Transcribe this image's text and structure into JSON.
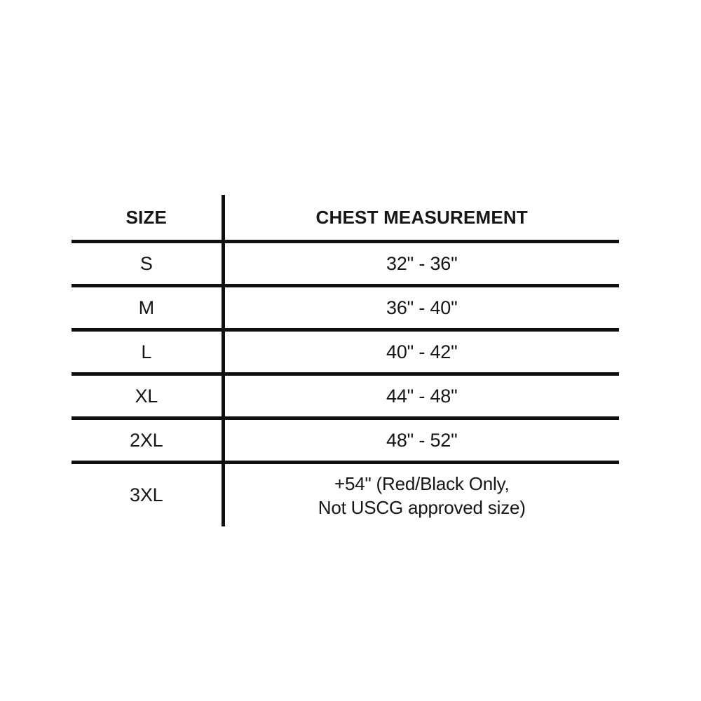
{
  "colors": {
    "background": "#ffffff",
    "text": "#161616",
    "rule_lines": "#101010"
  },
  "chart_data": {
    "type": "table",
    "title": "",
    "columns": [
      "SIZE",
      "CHEST MEASUREMENT"
    ],
    "rows": [
      [
        "S",
        "32\" - 36\""
      ],
      [
        "M",
        "36\" - 40\""
      ],
      [
        "L",
        "40\" - 42\""
      ],
      [
        "XL",
        "44\" - 48\""
      ],
      [
        "2XL",
        "48\" - 52\""
      ],
      [
        "3XL",
        "+54\" (Red/Black Only, Not USCG approved size)"
      ]
    ],
    "layout_hints": {
      "grid": "horizontal rules between rows, single vertical divider between columns, no outer border",
      "header_bold": true,
      "last_row_note_two_lines": true
    }
  },
  "table": {
    "header": {
      "size": "SIZE",
      "chest": "CHEST MEASUREMENT"
    },
    "rows": [
      {
        "size": "S",
        "chest": "32\" - 36\""
      },
      {
        "size": "M",
        "chest": "36\" - 40\""
      },
      {
        "size": "L",
        "chest": "40\" - 42\""
      },
      {
        "size": "XL",
        "chest": "44\" - 48\""
      },
      {
        "size": "2XL",
        "chest": "48\" - 52\""
      },
      {
        "size": "3XL",
        "chest": "+54\" (Red/Black Only,\nNot USCG approved size)"
      }
    ]
  }
}
